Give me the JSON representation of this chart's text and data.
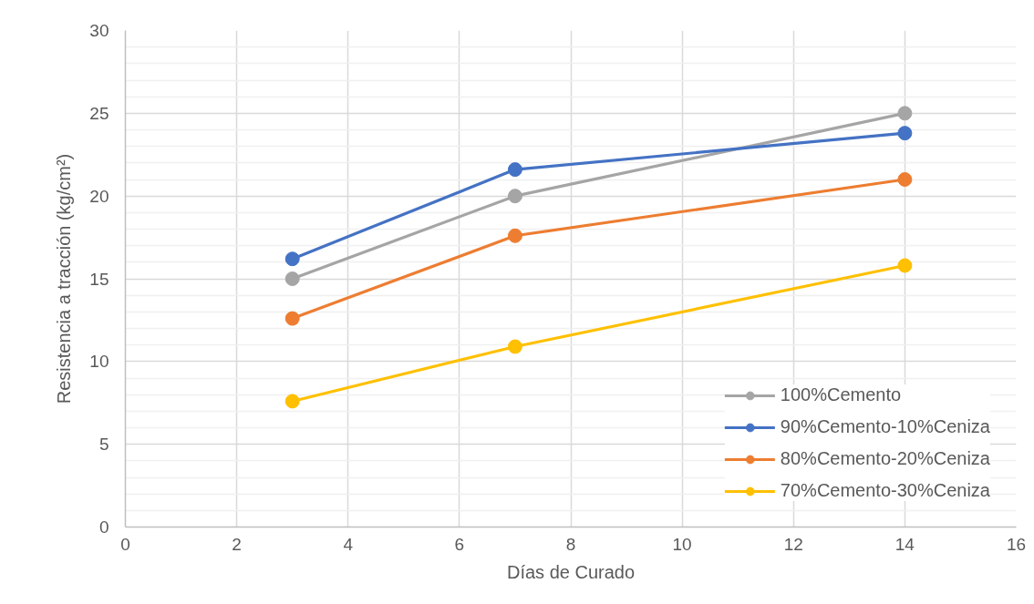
{
  "chart_data": {
    "type": "line",
    "xlabel": "Días de Curado",
    "ylabel": "Resistencia a tracción (kg/cm²)",
    "x": [
      3,
      7,
      14
    ],
    "series": [
      {
        "name": "100%Cemento",
        "color": "#a5a5a5",
        "values": [
          15,
          20,
          25
        ]
      },
      {
        "name": "90%Cemento-10%Ceniza",
        "color": "#4472c4",
        "values": [
          16.2,
          21.6,
          23.8
        ]
      },
      {
        "name": "80%Cemento-20%Ceniza",
        "color": "#ed7d31",
        "values": [
          12.6,
          17.6,
          21.0
        ]
      },
      {
        "name": "70%Cemento-30%Ceniza",
        "color": "#ffc000",
        "values": [
          7.6,
          10.9,
          15.8
        ]
      }
    ],
    "xlim": [
      0,
      16
    ],
    "ylim": [
      0,
      30
    ],
    "xticks": [
      0,
      2,
      4,
      6,
      8,
      10,
      12,
      14,
      16
    ],
    "yticks": [
      0,
      5,
      10,
      15,
      20,
      25,
      30
    ],
    "grid": true,
    "legend": "bottom right",
    "marker": "circle",
    "line_style": "solid"
  }
}
